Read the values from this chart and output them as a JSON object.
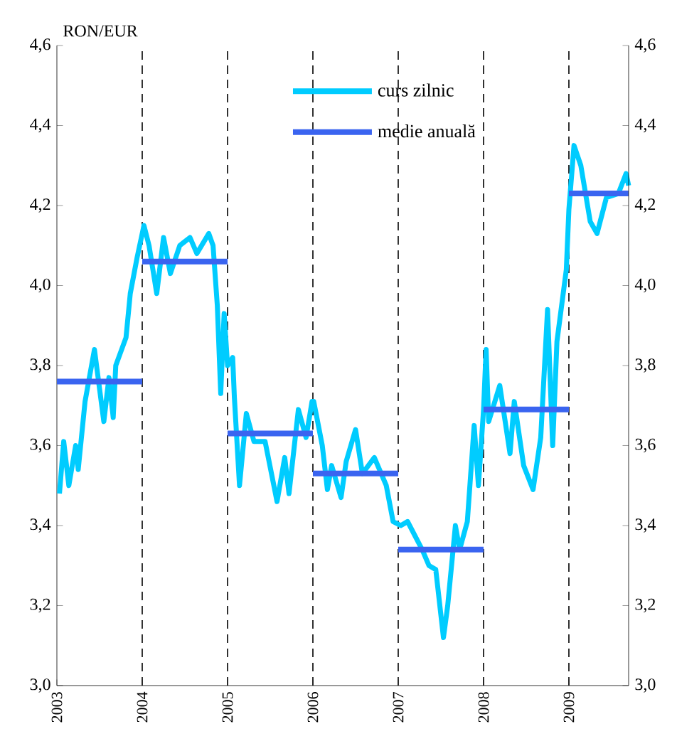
{
  "chart_data": {
    "type": "line",
    "ylabel": "RON/EUR",
    "xlim": [
      2003,
      2009.7
    ],
    "xticks": [
      2003,
      2004,
      2005,
      2006,
      2007,
      2008,
      2009
    ],
    "ylim": [
      3.0,
      4.6
    ],
    "yticks": [
      {
        "value": 3.0,
        "label": "3,0"
      },
      {
        "value": 3.2,
        "label": "3,2"
      },
      {
        "value": 3.4,
        "label": "3,4"
      },
      {
        "value": 3.6,
        "label": "3,6"
      },
      {
        "value": 3.8,
        "label": "3,8"
      },
      {
        "value": 4.0,
        "label": "4,0"
      },
      {
        "value": 4.2,
        "label": "4,2"
      },
      {
        "value": 4.4,
        "label": "4,4"
      },
      {
        "value": 4.6,
        "label": "4,6"
      }
    ],
    "y2lim": [
      3.0,
      4.6
    ],
    "y2ticks": [
      {
        "value": 3.0,
        "label": "3,0"
      },
      {
        "value": 3.2,
        "label": "3,2"
      },
      {
        "value": 3.4,
        "label": "3,4"
      },
      {
        "value": 3.6,
        "label": "3,6"
      },
      {
        "value": 3.8,
        "label": "3,8"
      },
      {
        "value": 4.0,
        "label": "4,0"
      },
      {
        "value": 4.2,
        "label": "4,2"
      },
      {
        "value": 4.4,
        "label": "4,4"
      },
      {
        "value": 4.6,
        "label": "4,6"
      }
    ],
    "ref_lines": [
      {
        "axis": "x",
        "value": 2004,
        "line_style": "dashed",
        "color": "#000000"
      },
      {
        "axis": "x",
        "value": 2005,
        "line_style": "dashed",
        "color": "#000000"
      },
      {
        "axis": "x",
        "value": 2006,
        "line_style": "dashed",
        "color": "#000000"
      },
      {
        "axis": "x",
        "value": 2007,
        "line_style": "dashed",
        "color": "#000000"
      },
      {
        "axis": "x",
        "value": 2008,
        "line_style": "dashed",
        "color": "#000000"
      },
      {
        "axis": "x",
        "value": 2009,
        "line_style": "dashed",
        "color": "#000000"
      }
    ],
    "legend": "top",
    "series": [
      {
        "name": "curs zilnic",
        "color": "#00ccff",
        "x": [
          2003.03,
          2003.08,
          2003.14,
          2003.22,
          2003.25,
          2003.33,
          2003.44,
          2003.55,
          2003.61,
          2003.66,
          2003.69,
          2003.81,
          2003.86,
          2003.94,
          2004.02,
          2004.08,
          2004.17,
          2004.25,
          2004.33,
          2004.44,
          2004.56,
          2004.64,
          2004.78,
          2004.83,
          2004.88,
          2004.92,
          2004.96,
          2005.0,
          2005.06,
          2005.08,
          2005.14,
          2005.22,
          2005.31,
          2005.44,
          2005.58,
          2005.67,
          2005.72,
          2005.83,
          2005.92,
          2005.99,
          2006.01,
          2006.11,
          2006.17,
          2006.22,
          2006.33,
          2006.39,
          2006.5,
          2006.58,
          2006.72,
          2006.86,
          2006.94,
          2007.03,
          2007.11,
          2007.28,
          2007.36,
          2007.44,
          2007.53,
          2007.58,
          2007.67,
          2007.72,
          2007.81,
          2007.89,
          2007.94,
          2008.0,
          2008.03,
          2008.06,
          2008.19,
          2008.31,
          2008.36,
          2008.47,
          2008.58,
          2008.67,
          2008.75,
          2008.81,
          2008.86,
          2008.97,
          2009.0,
          2009.06,
          2009.14,
          2009.25,
          2009.33,
          2009.44,
          2009.58,
          2009.67,
          2009.7
        ],
        "values": [
          3.48,
          3.61,
          3.5,
          3.6,
          3.54,
          3.71,
          3.84,
          3.66,
          3.77,
          3.67,
          3.8,
          3.87,
          3.98,
          4.07,
          4.15,
          4.1,
          3.98,
          4.12,
          4.03,
          4.1,
          4.12,
          4.08,
          4.13,
          4.1,
          3.95,
          3.73,
          3.93,
          3.8,
          3.82,
          3.72,
          3.5,
          3.68,
          3.61,
          3.61,
          3.46,
          3.57,
          3.48,
          3.69,
          3.62,
          3.71,
          3.71,
          3.6,
          3.49,
          3.55,
          3.47,
          3.56,
          3.64,
          3.53,
          3.57,
          3.5,
          3.41,
          3.4,
          3.41,
          3.34,
          3.3,
          3.29,
          3.12,
          3.2,
          3.4,
          3.34,
          3.41,
          3.65,
          3.5,
          3.69,
          3.84,
          3.66,
          3.75,
          3.58,
          3.71,
          3.55,
          3.49,
          3.62,
          3.94,
          3.6,
          3.86,
          4.04,
          4.19,
          4.35,
          4.3,
          4.16,
          4.13,
          4.22,
          4.23,
          4.28,
          4.25
        ]
      },
      {
        "name": "medie anuală",
        "color": "#3a64f0",
        "x": [
          2003,
          2004,
          null,
          2004,
          2005,
          null,
          2005,
          2006,
          null,
          2006,
          2007,
          null,
          2007,
          2008,
          null,
          2008,
          2009,
          null,
          2009,
          2009.7
        ],
        "values": [
          3.76,
          3.76,
          null,
          4.06,
          4.06,
          null,
          3.63,
          3.63,
          null,
          3.53,
          3.53,
          null,
          3.34,
          3.34,
          null,
          3.69,
          3.69,
          null,
          4.23,
          4.23
        ]
      }
    ]
  }
}
